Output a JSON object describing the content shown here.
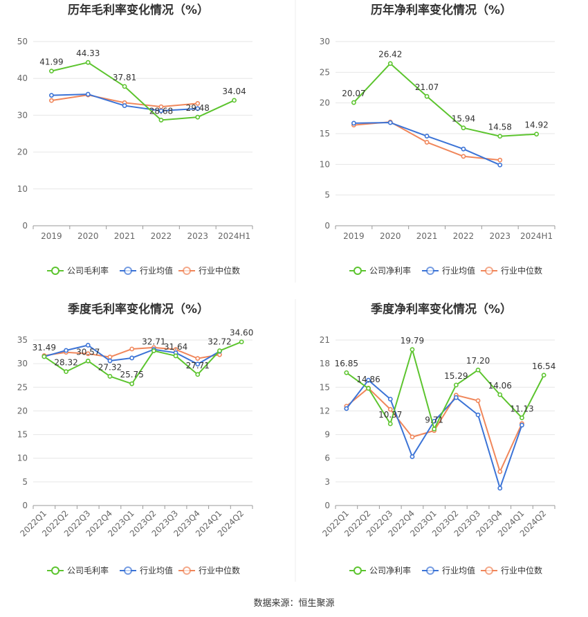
{
  "source": "数据来源：恒生聚源",
  "chart_data": [
    {
      "type": "line",
      "title": "历年毛利率变化情况（%）",
      "categories": [
        "2019",
        "2020",
        "2021",
        "2022",
        "2023",
        "2024H1"
      ],
      "ylim": [
        0,
        50
      ],
      "yticks": [
        0,
        10,
        20,
        30,
        40,
        50
      ],
      "grid": true,
      "legend_position": "bottom",
      "series": [
        {
          "name": "公司毛利率",
          "color": "#5cc42e",
          "values": [
            41.99,
            44.33,
            37.81,
            28.68,
            29.48,
            34.04
          ],
          "labels": [
            "41.99",
            "44.33",
            "37.81",
            "28.68",
            "29.48",
            "34.04"
          ]
        },
        {
          "name": "行业均值",
          "color": "#3b73d6",
          "values": [
            35.4,
            35.7,
            32.6,
            31.2,
            31.8,
            null
          ]
        },
        {
          "name": "行业中位数",
          "color": "#f0865a",
          "values": [
            34.0,
            35.5,
            33.4,
            32.3,
            33.2,
            null
          ]
        }
      ]
    },
    {
      "type": "line",
      "title": "历年净利率变化情况（%）",
      "categories": [
        "2019",
        "2020",
        "2021",
        "2022",
        "2023",
        "2024H1"
      ],
      "ylim": [
        0,
        30
      ],
      "yticks": [
        0,
        5,
        10,
        15,
        20,
        25,
        30
      ],
      "grid": true,
      "legend_position": "bottom",
      "series": [
        {
          "name": "公司净利率",
          "color": "#5cc42e",
          "values": [
            20.07,
            26.42,
            21.07,
            15.94,
            14.58,
            14.92
          ],
          "labels": [
            "20.07",
            "26.42",
            "21.07",
            "15.94",
            "14.58",
            "14.92"
          ]
        },
        {
          "name": "行业均值",
          "color": "#3b73d6",
          "values": [
            16.7,
            16.8,
            14.6,
            12.5,
            9.9,
            null
          ]
        },
        {
          "name": "行业中位数",
          "color": "#f0865a",
          "values": [
            16.4,
            16.9,
            13.6,
            11.3,
            10.7,
            null
          ]
        }
      ]
    },
    {
      "type": "line",
      "title": "季度毛利率变化情况（%）",
      "categories": [
        "2022Q1",
        "2022Q2",
        "2022Q3",
        "2022Q4",
        "2023Q1",
        "2023Q2",
        "2023Q3",
        "2023Q4",
        "2024Q1",
        "2024Q2"
      ],
      "ylim": [
        0,
        35
      ],
      "yticks": [
        0,
        5,
        10,
        15,
        20,
        25,
        30,
        35
      ],
      "grid": true,
      "legend_position": "bottom",
      "series": [
        {
          "name": "公司毛利率",
          "color": "#5cc42e",
          "values": [
            31.49,
            28.32,
            30.57,
            27.32,
            25.75,
            32.71,
            31.64,
            27.71,
            32.72,
            34.6
          ],
          "labels": [
            "31.49",
            "28.32",
            "30.57",
            "27.32",
            "25.75",
            "32.71",
            "31.64",
            "27.71",
            "32.72",
            "34.60"
          ]
        },
        {
          "name": "行业均值",
          "color": "#3b73d6",
          "values": [
            31.5,
            32.8,
            33.9,
            30.6,
            31.2,
            33.0,
            32.3,
            29.9,
            32.6,
            null
          ]
        },
        {
          "name": "行业中位数",
          "color": "#f0865a",
          "values": [
            31.7,
            32.4,
            32.1,
            31.4,
            33.1,
            33.4,
            33.0,
            31.1,
            31.9,
            null
          ]
        }
      ]
    },
    {
      "type": "line",
      "title": "季度净利率变化情况（%）",
      "categories": [
        "2022Q1",
        "2022Q2",
        "2022Q3",
        "2022Q4",
        "2023Q1",
        "2023Q2",
        "2023Q3",
        "2023Q4",
        "2024Q1",
        "2024Q2"
      ],
      "ylim": [
        0,
        21
      ],
      "yticks": [
        0,
        3,
        6,
        9,
        12,
        15,
        18,
        21
      ],
      "grid": true,
      "legend_position": "bottom",
      "series": [
        {
          "name": "公司净利率",
          "color": "#5cc42e",
          "values": [
            16.85,
            14.86,
            10.37,
            19.79,
            9.71,
            15.29,
            17.2,
            14.06,
            11.13,
            16.54
          ],
          "labels": [
            "16.85",
            "14.86",
            "10.37",
            "19.79",
            "9.71",
            "15.29",
            "17.20",
            "14.06",
            "11.13",
            "16.54"
          ]
        },
        {
          "name": "行业均值",
          "color": "#3b73d6",
          "values": [
            12.3,
            15.9,
            13.5,
            6.2,
            10.7,
            13.7,
            11.5,
            2.2,
            10.2,
            null
          ]
        },
        {
          "name": "行业中位数",
          "color": "#f0865a",
          "values": [
            12.6,
            14.9,
            12.2,
            8.7,
            9.5,
            14.0,
            13.3,
            4.3,
            10.4,
            null
          ]
        }
      ]
    }
  ]
}
